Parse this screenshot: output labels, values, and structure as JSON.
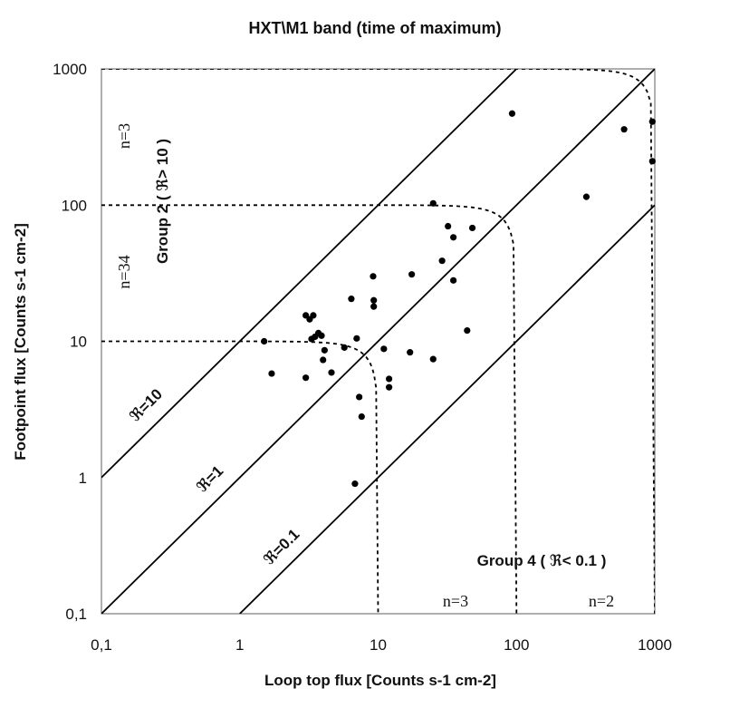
{
  "chart_data": {
    "type": "scatter",
    "title": "HXT\\M1 band (time of maximum)",
    "xlabel": "Loop top flux [Counts s-1 cm-2]",
    "ylabel": "Footpoint flux [Counts s-1 cm-2]",
    "xscale": "log",
    "yscale": "log",
    "xlim": [
      0.1,
      1000
    ],
    "ylim": [
      0.1,
      1000
    ],
    "x_ticks": [
      "0,1",
      "1",
      "10",
      "100",
      "1000"
    ],
    "y_ticks": [
      "0,1",
      "1",
      "10",
      "100",
      "1000"
    ],
    "ratio_lines": [
      {
        "label": "ℜ=10",
        "ratio": 10
      },
      {
        "label": "ℜ=1",
        "ratio": 1
      },
      {
        "label": "ℜ=0.1",
        "ratio": 0.1
      }
    ],
    "threshold_curves": [
      10,
      100,
      1000
    ],
    "annotations": {
      "group2": "Group 2 ( ℜ> 10 )",
      "group4": "Group 4 ( ℜ< 0.1 )",
      "n_top": "n=3",
      "n_mid": "n=34",
      "n_bottom_1": "n=3",
      "n_bottom_2": "n=2"
    },
    "points": [
      {
        "x": 93,
        "y": 470
      },
      {
        "x": 960,
        "y": 410
      },
      {
        "x": 600,
        "y": 360
      },
      {
        "x": 960,
        "y": 210
      },
      {
        "x": 320,
        "y": 115
      },
      {
        "x": 25,
        "y": 103
      },
      {
        "x": 32,
        "y": 70
      },
      {
        "x": 48,
        "y": 68
      },
      {
        "x": 35,
        "y": 58
      },
      {
        "x": 29,
        "y": 39
      },
      {
        "x": 17.5,
        "y": 31
      },
      {
        "x": 9.2,
        "y": 30
      },
      {
        "x": 35,
        "y": 28
      },
      {
        "x": 6.4,
        "y": 20.5
      },
      {
        "x": 9.3,
        "y": 20
      },
      {
        "x": 9.3,
        "y": 18
      },
      {
        "x": 3.0,
        "y": 15.5
      },
      {
        "x": 3.4,
        "y": 15.5
      },
      {
        "x": 3.2,
        "y": 14.5
      },
      {
        "x": 3.7,
        "y": 11.5
      },
      {
        "x": 3.9,
        "y": 11.0
      },
      {
        "x": 3.5,
        "y": 10.8
      },
      {
        "x": 3.3,
        "y": 10.4
      },
      {
        "x": 7.0,
        "y": 10.5
      },
      {
        "x": 44,
        "y": 12
      },
      {
        "x": 1.5,
        "y": 10
      },
      {
        "x": 5.7,
        "y": 9.0
      },
      {
        "x": 4.1,
        "y": 8.6
      },
      {
        "x": 11,
        "y": 8.8
      },
      {
        "x": 17,
        "y": 8.3
      },
      {
        "x": 4.0,
        "y": 7.3
      },
      {
        "x": 25,
        "y": 7.4
      },
      {
        "x": 1.7,
        "y": 5.8
      },
      {
        "x": 4.6,
        "y": 5.9
      },
      {
        "x": 3.0,
        "y": 5.4
      },
      {
        "x": 12,
        "y": 5.3
      },
      {
        "x": 12,
        "y": 4.6
      },
      {
        "x": 7.3,
        "y": 3.9
      },
      {
        "x": 7.6,
        "y": 2.8
      },
      {
        "x": 6.8,
        "y": 0.9
      }
    ]
  }
}
